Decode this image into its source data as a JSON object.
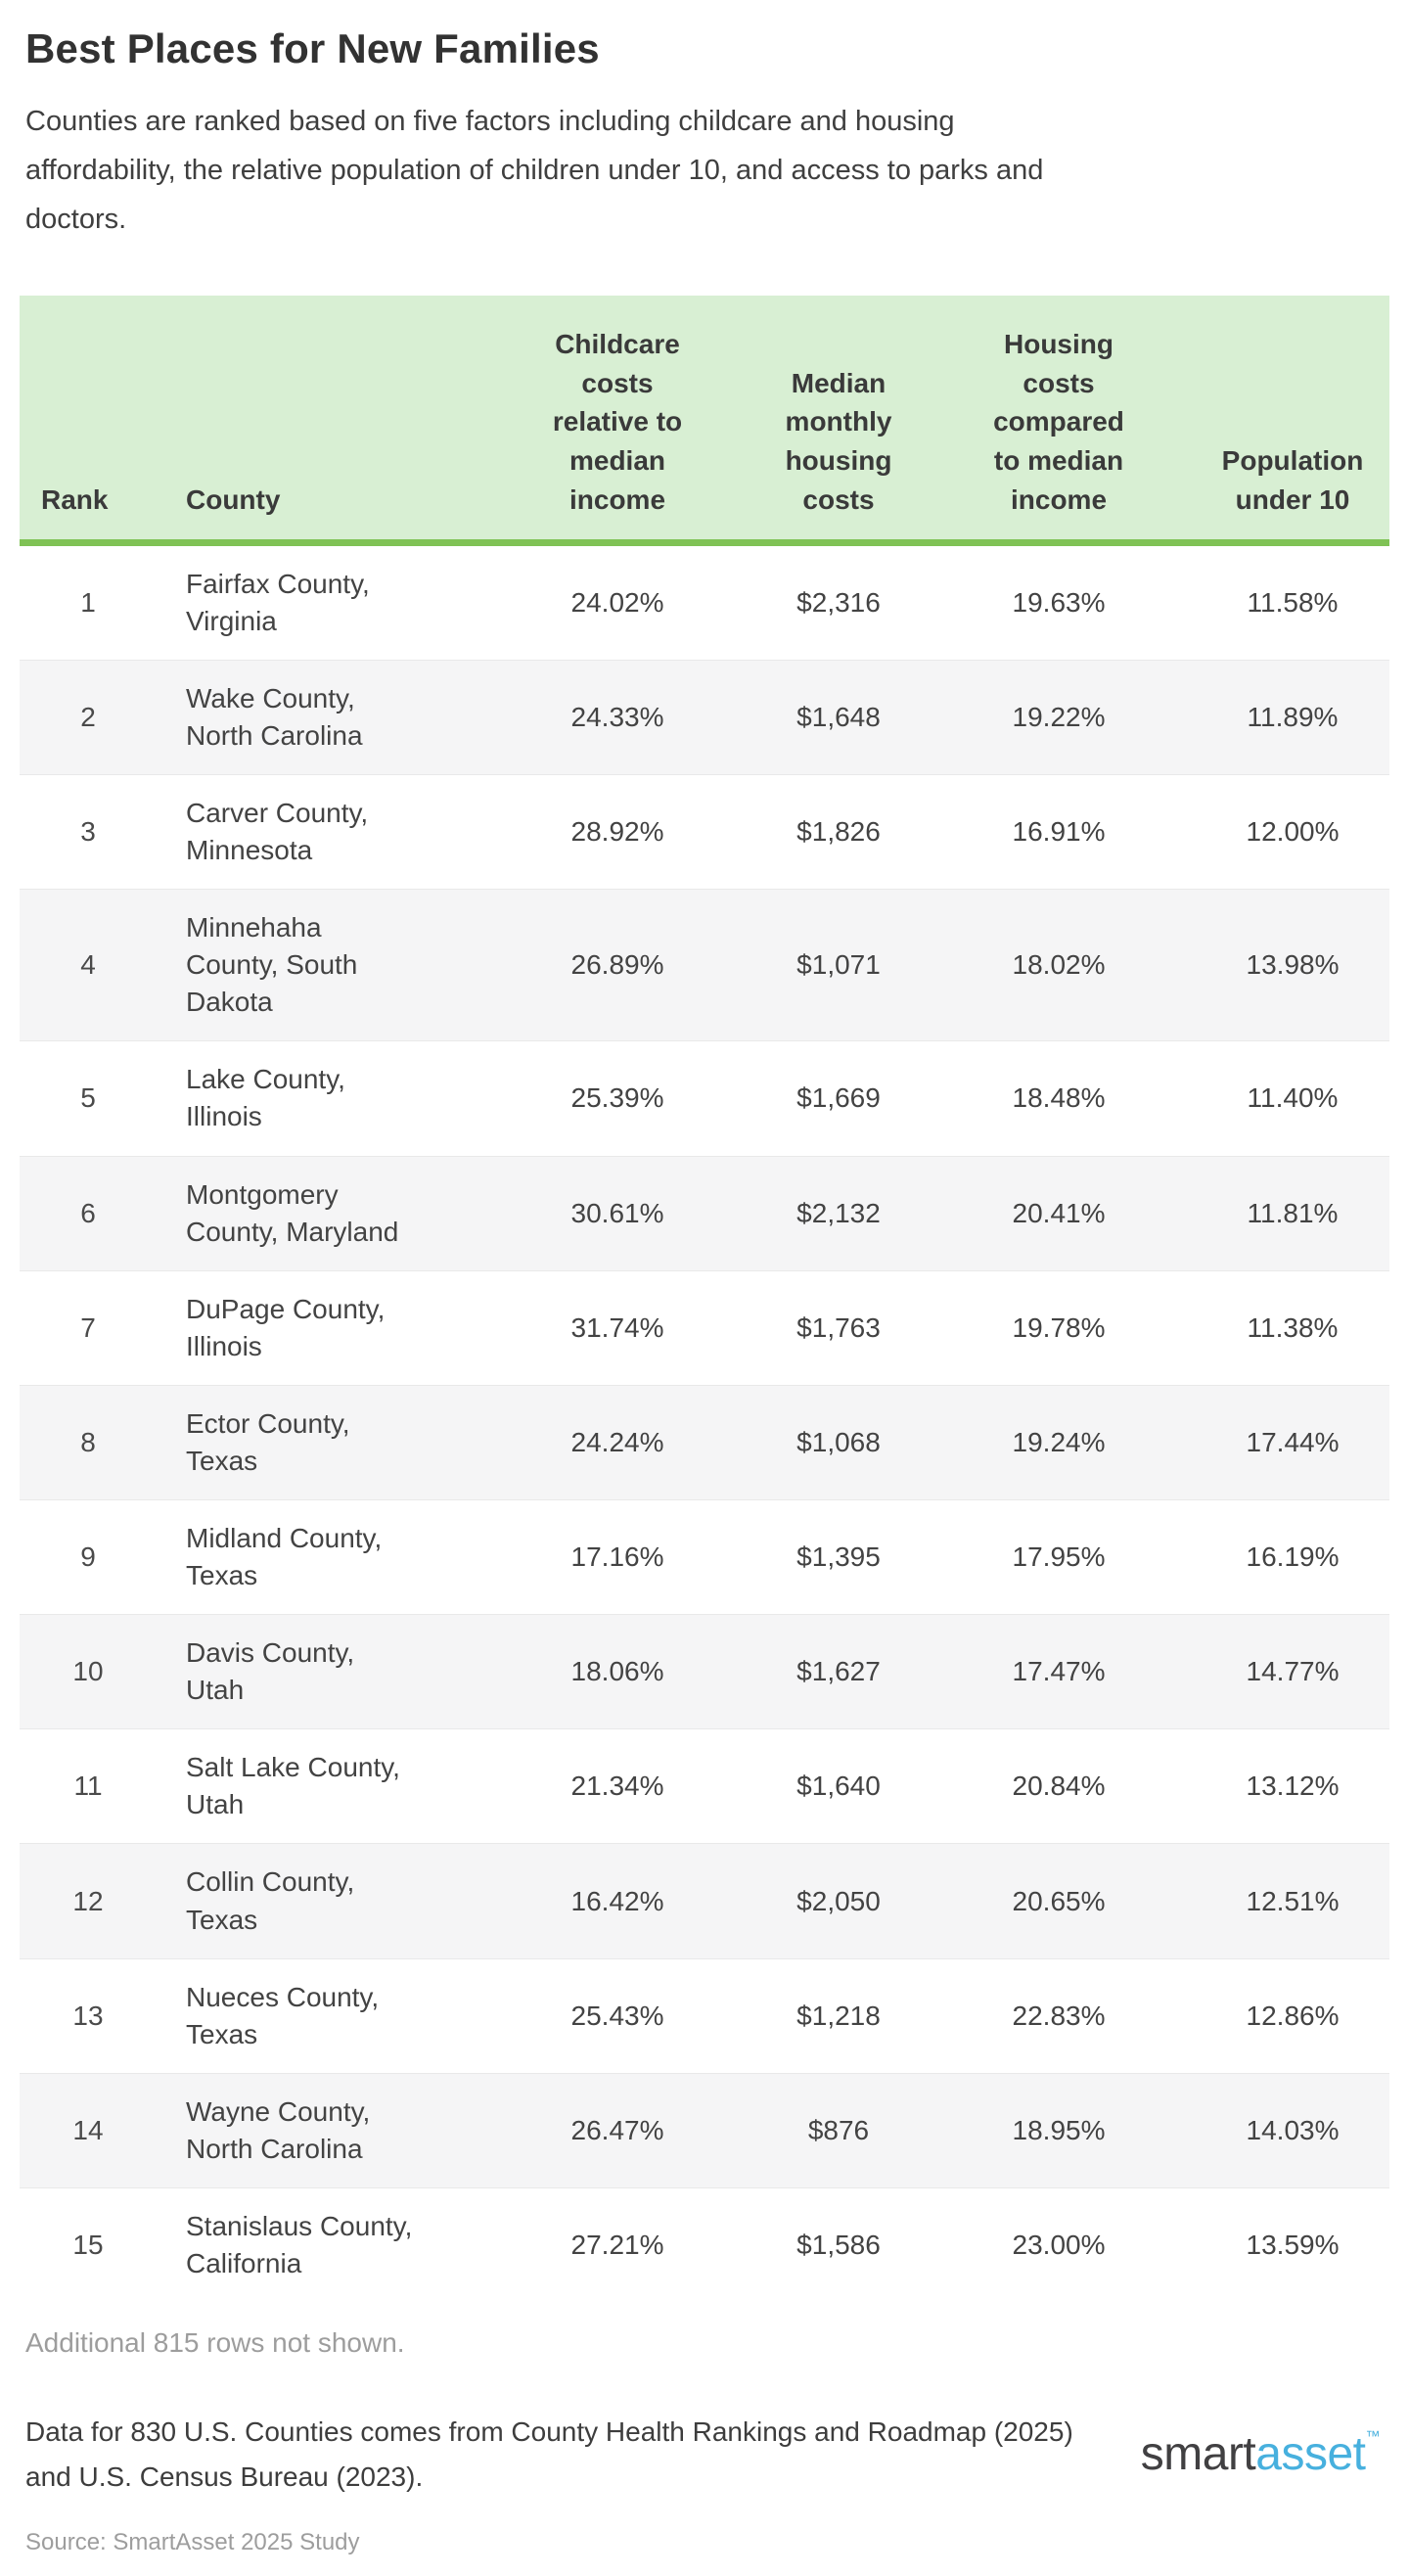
{
  "page": {
    "title": "Best Places for New Families",
    "subtitle": "Counties are ranked based on five factors including childcare and housing\naffordability, the relative population of children under 10, and access to parks and\ndoctors."
  },
  "chart_data": {
    "type": "table",
    "title": "Best Places for New Families",
    "columns": [
      "Rank",
      "County",
      "Childcare\ncosts\nrelative to\nmedian\nincome",
      "Median\nmonthly\nhousing\ncosts",
      "Housing\ncosts\ncompared\nto median\nincome",
      "Population\nunder 10"
    ],
    "rows": [
      {
        "rank": "1",
        "county": "Fairfax County,\nVirginia",
        "childcare_costs": "24.02%",
        "median_monthly_housing": "$2,316",
        "housing_costs": "19.63%",
        "population_under_10": "11.58%"
      },
      {
        "rank": "2",
        "county": "Wake County,\nNorth Carolina",
        "childcare_costs": "24.33%",
        "median_monthly_housing": "$1,648",
        "housing_costs": "19.22%",
        "population_under_10": "11.89%"
      },
      {
        "rank": "3",
        "county": "Carver County,\nMinnesota",
        "childcare_costs": "28.92%",
        "median_monthly_housing": "$1,826",
        "housing_costs": "16.91%",
        "population_under_10": "12.00%"
      },
      {
        "rank": "4",
        "county": "Minnehaha\nCounty, South\nDakota",
        "childcare_costs": "26.89%",
        "median_monthly_housing": "$1,071",
        "housing_costs": "18.02%",
        "population_under_10": "13.98%"
      },
      {
        "rank": "5",
        "county": "Lake County,\nIllinois",
        "childcare_costs": "25.39%",
        "median_monthly_housing": "$1,669",
        "housing_costs": "18.48%",
        "population_under_10": "11.40%"
      },
      {
        "rank": "6",
        "county": "Montgomery\nCounty, Maryland",
        "childcare_costs": "30.61%",
        "median_monthly_housing": "$2,132",
        "housing_costs": "20.41%",
        "population_under_10": "11.81%"
      },
      {
        "rank": "7",
        "county": "DuPage County,\nIllinois",
        "childcare_costs": "31.74%",
        "median_monthly_housing": "$1,763",
        "housing_costs": "19.78%",
        "population_under_10": "11.38%"
      },
      {
        "rank": "8",
        "county": "Ector County,\nTexas",
        "childcare_costs": "24.24%",
        "median_monthly_housing": "$1,068",
        "housing_costs": "19.24%",
        "population_under_10": "17.44%"
      },
      {
        "rank": "9",
        "county": "Midland County,\nTexas",
        "childcare_costs": "17.16%",
        "median_monthly_housing": "$1,395",
        "housing_costs": "17.95%",
        "population_under_10": "16.19%"
      },
      {
        "rank": "10",
        "county": "Davis County,\nUtah",
        "childcare_costs": "18.06%",
        "median_monthly_housing": "$1,627",
        "housing_costs": "17.47%",
        "population_under_10": "14.77%"
      },
      {
        "rank": "11",
        "county": "Salt Lake County,\nUtah",
        "childcare_costs": "21.34%",
        "median_monthly_housing": "$1,640",
        "housing_costs": "20.84%",
        "population_under_10": "13.12%"
      },
      {
        "rank": "12",
        "county": "Collin County,\nTexas",
        "childcare_costs": "16.42%",
        "median_monthly_housing": "$2,050",
        "housing_costs": "20.65%",
        "population_under_10": "12.51%"
      },
      {
        "rank": "13",
        "county": "Nueces County,\nTexas",
        "childcare_costs": "25.43%",
        "median_monthly_housing": "$1,218",
        "housing_costs": "22.83%",
        "population_under_10": "12.86%"
      },
      {
        "rank": "14",
        "county": "Wayne County,\nNorth Carolina",
        "childcare_costs": "26.47%",
        "median_monthly_housing": "$876",
        "housing_costs": "18.95%",
        "population_under_10": "14.03%"
      },
      {
        "rank": "15",
        "county": "Stanislaus County,\nCalifornia",
        "childcare_costs": "27.21%",
        "median_monthly_housing": "$1,586",
        "housing_costs": "23.00%",
        "population_under_10": "13.59%"
      }
    ]
  },
  "footer": {
    "additional_rows_note": "Additional 815 rows not shown.",
    "data_note": "Data for 830 U.S. Counties comes from County Health Rankings and Roadmap (2025)\nand U.S. Census Bureau (2023).",
    "source": "Source: SmartAsset 2025 Study",
    "logo": {
      "smart": "smart",
      "asset": "asset",
      "tm": "™"
    }
  },
  "colors": {
    "header_background_green": "#d8efd3",
    "header_border_green": "#7fc255",
    "row_stripe_gray": "#f5f5f6",
    "text_dark": "#3c3c3c",
    "text_gray": "#9d9d9d",
    "logo_blue": "#47b0de",
    "logo_dark": "#414042"
  }
}
